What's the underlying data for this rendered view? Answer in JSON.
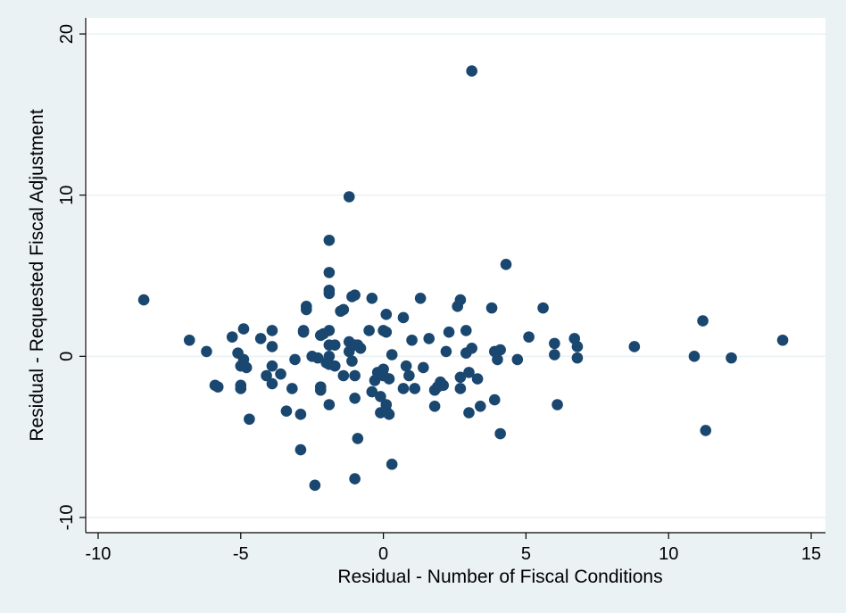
{
  "colors": {
    "outer_background": "#eaf2f3",
    "plot_background": "#ffffff",
    "gridline": "#eaf2f3",
    "axis_line": "#000000",
    "marker": "#1a476f"
  },
  "chart_data": {
    "type": "scatter",
    "title": "",
    "xlabel": "Residual - Number of Fiscal Conditions",
    "ylabel": "Residual -  Requested Fiscal Adjustment",
    "xlim": [
      -10.5,
      15.5
    ],
    "ylim": [
      -11,
      21
    ],
    "xticks": [
      -10,
      -5,
      0,
      5,
      10,
      15
    ],
    "xtick_labels": [
      "-10",
      "-5",
      "0",
      "5",
      "10",
      "15"
    ],
    "yticks": [
      -10,
      0,
      10,
      20
    ],
    "ytick_labels": [
      "-10",
      "0",
      "10",
      "20"
    ],
    "grid": "horizontal",
    "legend": "none",
    "points": [
      [
        -8.4,
        3.5
      ],
      [
        -6.8,
        1.0
      ],
      [
        -6.2,
        0.3
      ],
      [
        -5.9,
        -1.8
      ],
      [
        -5.8,
        -1.9
      ],
      [
        -5.3,
        1.2
      ],
      [
        -5.1,
        0.2
      ],
      [
        -5.0,
        -0.6
      ],
      [
        -5.0,
        -1.8
      ],
      [
        -5.0,
        -2.0
      ],
      [
        -4.9,
        1.7
      ],
      [
        -4.9,
        -0.2
      ],
      [
        -4.8,
        -0.7
      ],
      [
        -4.7,
        -3.9
      ],
      [
        -4.3,
        1.1
      ],
      [
        -4.1,
        -1.2
      ],
      [
        -3.9,
        1.6
      ],
      [
        -3.9,
        0.6
      ],
      [
        -3.9,
        -0.6
      ],
      [
        -3.9,
        -1.7
      ],
      [
        -3.6,
        -1.1
      ],
      [
        -3.4,
        -3.4
      ],
      [
        -3.2,
        -2.0
      ],
      [
        -3.1,
        -0.2
      ],
      [
        -2.9,
        -3.6
      ],
      [
        -2.9,
        -5.8
      ],
      [
        -2.8,
        1.6
      ],
      [
        -2.8,
        1.5
      ],
      [
        -2.7,
        3.1
      ],
      [
        -2.7,
        2.9
      ],
      [
        -2.5,
        0.0
      ],
      [
        -2.4,
        -8.0
      ],
      [
        -2.3,
        -0.1
      ],
      [
        -2.2,
        1.3
      ],
      [
        -2.2,
        -1.9
      ],
      [
        -2.2,
        -2.1
      ],
      [
        -2.1,
        1.4
      ],
      [
        -2.0,
        -0.4
      ],
      [
        -1.9,
        7.2
      ],
      [
        -1.9,
        5.2
      ],
      [
        -1.9,
        4.1
      ],
      [
        -1.9,
        3.9
      ],
      [
        -1.9,
        1.6
      ],
      [
        -1.9,
        0.7
      ],
      [
        -1.9,
        0.0
      ],
      [
        -1.9,
        -0.5
      ],
      [
        -1.9,
        -3.0
      ],
      [
        -1.7,
        0.7
      ],
      [
        -1.7,
        -0.6
      ],
      [
        -1.5,
        2.8
      ],
      [
        -1.4,
        2.9
      ],
      [
        -1.4,
        -1.2
      ],
      [
        -1.2,
        9.9
      ],
      [
        -1.2,
        0.9
      ],
      [
        -1.2,
        0.3
      ],
      [
        -1.1,
        3.7
      ],
      [
        -1.1,
        -0.3
      ],
      [
        -1.0,
        3.8
      ],
      [
        -1.0,
        0.7
      ],
      [
        -1.0,
        -1.2
      ],
      [
        -1.0,
        -2.6
      ],
      [
        -1.0,
        -7.6
      ],
      [
        -0.9,
        -5.1
      ],
      [
        -0.9,
        0.7
      ],
      [
        -0.8,
        0.5
      ],
      [
        -0.5,
        1.6
      ],
      [
        -0.4,
        3.6
      ],
      [
        -0.4,
        -2.2
      ],
      [
        -0.3,
        -1.5
      ],
      [
        -0.2,
        -1.0
      ],
      [
        -0.1,
        -2.5
      ],
      [
        -0.1,
        -3.5
      ],
      [
        0.0,
        1.6
      ],
      [
        0.0,
        -0.8
      ],
      [
        0.0,
        -1.2
      ],
      [
        0.1,
        2.6
      ],
      [
        0.1,
        1.5
      ],
      [
        0.1,
        -3.0
      ],
      [
        0.1,
        -3.4
      ],
      [
        0.2,
        -1.4
      ],
      [
        0.2,
        -3.6
      ],
      [
        0.3,
        0.1
      ],
      [
        0.3,
        -6.7
      ],
      [
        0.7,
        2.4
      ],
      [
        0.7,
        -2.0
      ],
      [
        0.8,
        -0.6
      ],
      [
        0.9,
        -1.2
      ],
      [
        1.0,
        1.0
      ],
      [
        1.1,
        -2.0
      ],
      [
        1.3,
        3.6
      ],
      [
        1.4,
        -0.7
      ],
      [
        1.6,
        1.1
      ],
      [
        1.8,
        -2.1
      ],
      [
        1.8,
        -3.1
      ],
      [
        1.9,
        -1.9
      ],
      [
        2.0,
        -1.6
      ],
      [
        2.1,
        -1.8
      ],
      [
        2.2,
        0.3
      ],
      [
        2.3,
        1.5
      ],
      [
        2.6,
        3.1
      ],
      [
        2.7,
        3.5
      ],
      [
        2.7,
        -1.3
      ],
      [
        2.7,
        -2.0
      ],
      [
        2.9,
        0.2
      ],
      [
        2.9,
        1.6
      ],
      [
        3.0,
        -1.0
      ],
      [
        3.0,
        -3.5
      ],
      [
        3.1,
        17.7
      ],
      [
        3.1,
        0.5
      ],
      [
        3.3,
        -1.4
      ],
      [
        3.4,
        -3.1
      ],
      [
        3.8,
        3.0
      ],
      [
        3.9,
        0.3
      ],
      [
        3.9,
        -2.7
      ],
      [
        4.0,
        -0.2
      ],
      [
        4.1,
        0.4
      ],
      [
        4.1,
        -4.8
      ],
      [
        4.3,
        5.7
      ],
      [
        4.7,
        -0.2
      ],
      [
        5.1,
        1.2
      ],
      [
        5.6,
        3.0
      ],
      [
        6.0,
        0.8
      ],
      [
        6.0,
        0.1
      ],
      [
        6.1,
        -3.0
      ],
      [
        6.7,
        1.1
      ],
      [
        6.8,
        0.6
      ],
      [
        6.8,
        -0.1
      ],
      [
        8.8,
        0.6
      ],
      [
        10.9,
        0.0
      ],
      [
        11.2,
        2.2
      ],
      [
        11.3,
        -4.6
      ],
      [
        12.2,
        -0.1
      ],
      [
        14.0,
        1.0
      ]
    ]
  }
}
